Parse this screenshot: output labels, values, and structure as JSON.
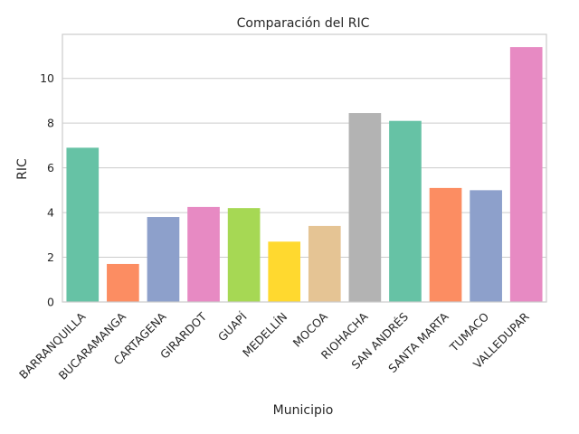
{
  "chart_data": {
    "type": "bar",
    "title": "Comparación del RIC",
    "xlabel": "Municipio",
    "ylabel": "RIC",
    "categories": [
      "BARRANQUILLA",
      "BUCARAMANGA",
      "CARTAGENA",
      "GIRARDOT",
      "GUAPÍ",
      "MEDELLÍN",
      "MOCOA",
      "RIOHACHA",
      "SAN ANDRÉS",
      "SANTA MARTA",
      "TUMACO",
      "VALLEDUPAR"
    ],
    "values": [
      6.9,
      1.7,
      3.8,
      4.25,
      4.2,
      2.7,
      3.4,
      8.45,
      8.1,
      5.1,
      5.0,
      11.4
    ],
    "colors": [
      "#66c2a5",
      "#fc8d62",
      "#8da0cb",
      "#e78ac3",
      "#a6d854",
      "#ffd92f",
      "#e5c494",
      "#b3b3b3",
      "#66c2a5",
      "#fc8d62",
      "#8da0cb",
      "#e78ac3"
    ],
    "yticks": [
      0,
      2,
      4,
      6,
      8,
      10
    ],
    "ylim": [
      0,
      11.97
    ],
    "grid": true
  }
}
